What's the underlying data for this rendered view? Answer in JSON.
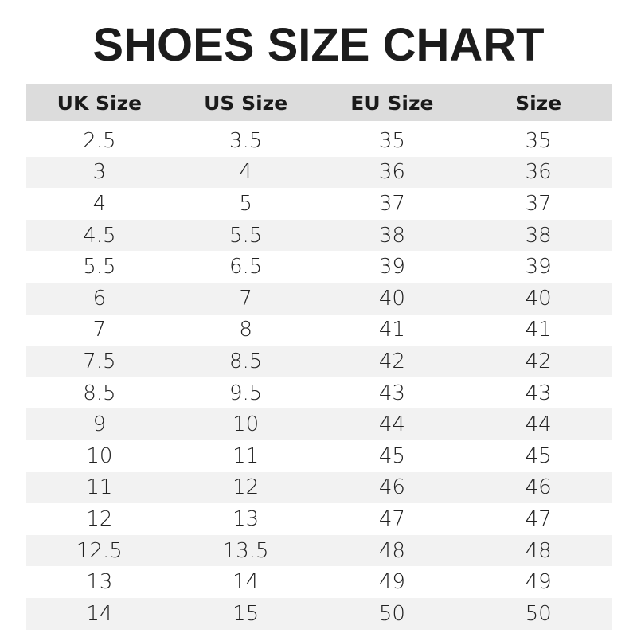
{
  "title": "SHOES SIZE CHART",
  "table": {
    "headers": [
      "UK Size",
      "US Size",
      "EU Size",
      "Size"
    ],
    "rows": [
      [
        "2.5",
        "3.5",
        "35",
        "35"
      ],
      [
        "3",
        "4",
        "36",
        "36"
      ],
      [
        "4",
        "5",
        "37",
        "37"
      ],
      [
        "4.5",
        "5.5",
        "38",
        "38"
      ],
      [
        "5.5",
        "6.5",
        "39",
        "39"
      ],
      [
        "6",
        "7",
        "40",
        "40"
      ],
      [
        "7",
        "8",
        "41",
        "41"
      ],
      [
        "7.5",
        "8.5",
        "42",
        "42"
      ],
      [
        "8.5",
        "9.5",
        "43",
        "43"
      ],
      [
        "9",
        "10",
        "44",
        "44"
      ],
      [
        "10",
        "11",
        "45",
        "45"
      ],
      [
        "11",
        "12",
        "46",
        "46"
      ],
      [
        "12",
        "13",
        "47",
        "47"
      ],
      [
        "12.5",
        "13.5",
        "48",
        "48"
      ],
      [
        "13",
        "14",
        "49",
        "49"
      ],
      [
        "14",
        "15",
        "50",
        "50"
      ]
    ]
  },
  "colors": {
    "header_bg": "#dcdcdc",
    "stripe_bg": "#f2f2f2",
    "text": "#1a1a1a"
  }
}
